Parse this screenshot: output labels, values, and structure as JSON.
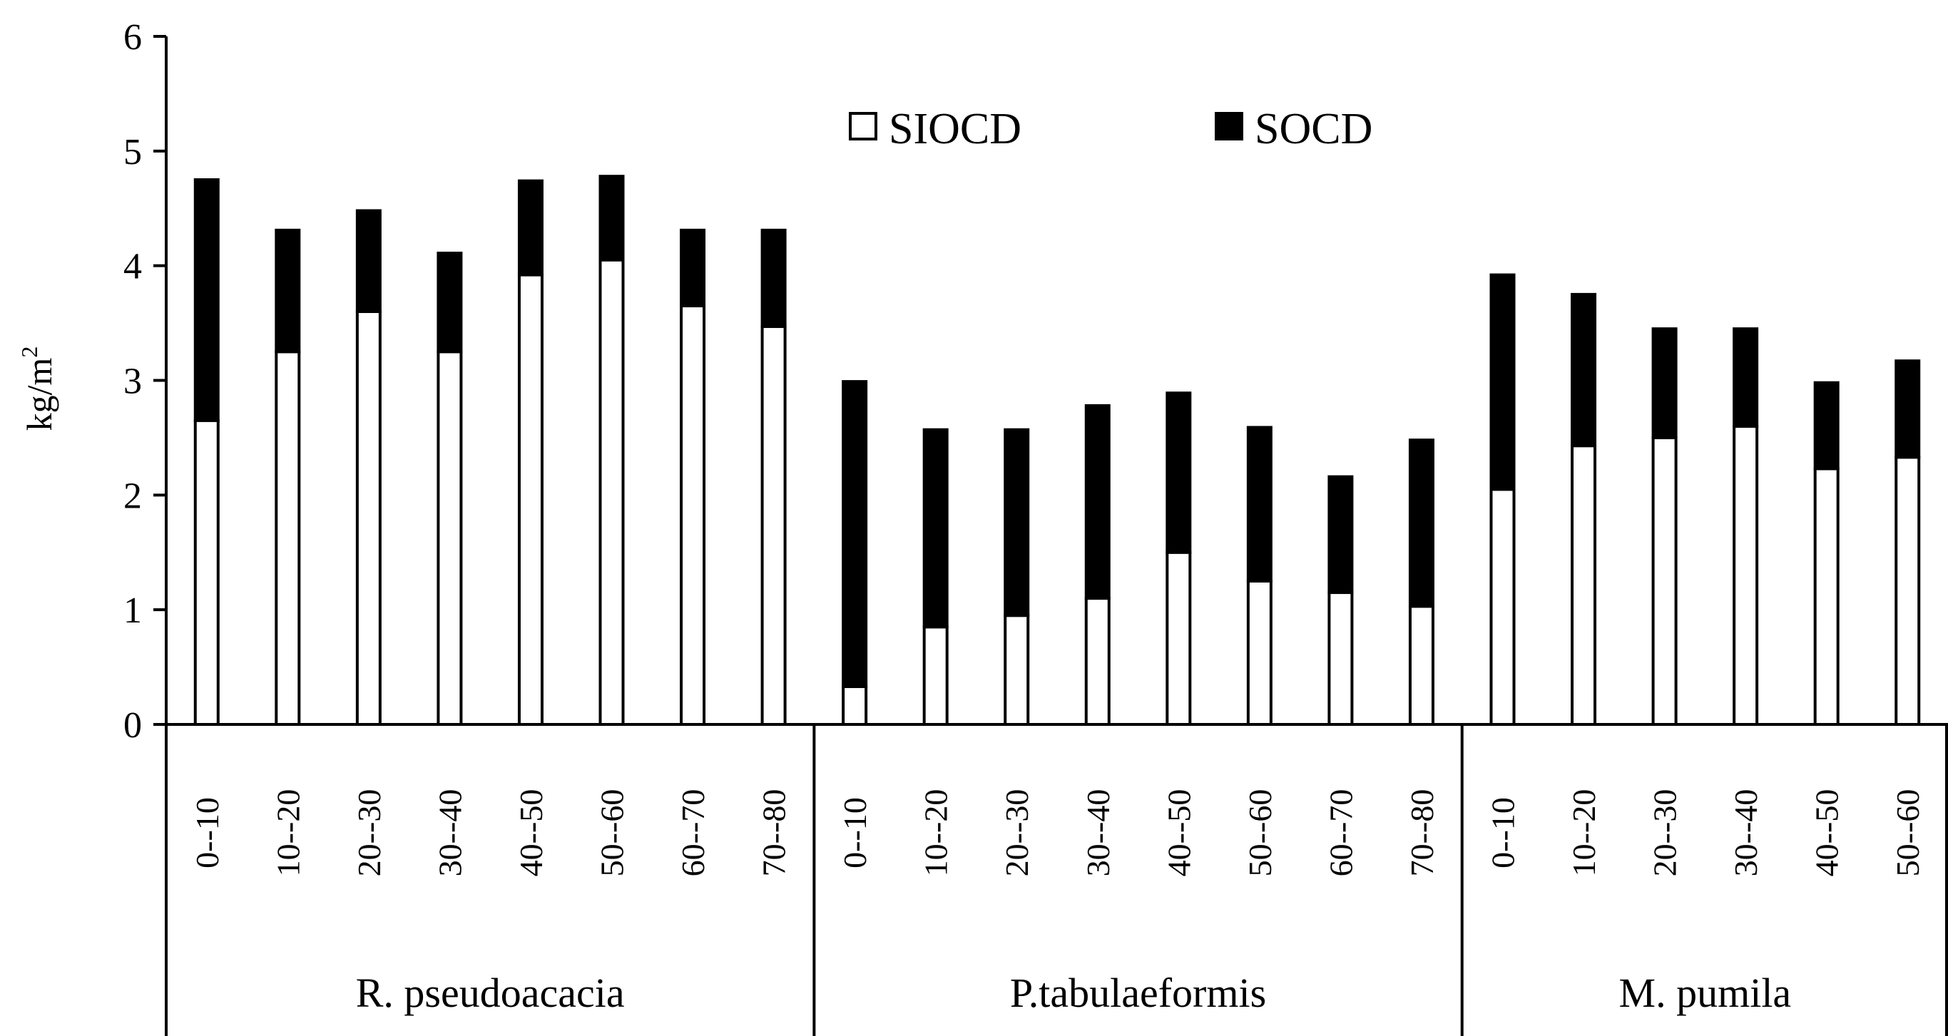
{
  "chart_data": {
    "type": "bar",
    "stacked": true,
    "title": "",
    "xlabel": "",
    "ylabel": "kg/m",
    "ylabel_superscript": "2",
    "ylim": [
      0,
      6
    ],
    "yticks": [
      "0",
      "1",
      "2",
      "3",
      "4",
      "5",
      "6"
    ],
    "groups": [
      {
        "name": "R. pseudoacacia",
        "categories": [
          "0--10",
          "10--20",
          "20--30",
          "30--40",
          "40--50",
          "50--60",
          "60--70",
          "70--80"
        ],
        "siocd": [
          2.65,
          3.25,
          3.6,
          3.25,
          3.92,
          4.05,
          3.65,
          3.47
        ],
        "socd": [
          2.1,
          1.06,
          0.88,
          0.86,
          0.82,
          0.73,
          0.66,
          0.84
        ]
      },
      {
        "name": "P.tabulaeformis",
        "categories": [
          "0--10",
          "10--20",
          "20--30",
          "30--40",
          "40--50",
          "50--60",
          "60--70",
          "70--80"
        ],
        "siocd": [
          0.33,
          0.85,
          0.95,
          1.1,
          1.5,
          1.25,
          1.15,
          1.03
        ],
        "socd": [
          2.66,
          1.72,
          1.62,
          1.68,
          1.39,
          1.34,
          1.01,
          1.45
        ]
      },
      {
        "name": "M. pumila",
        "categories": [
          "0--10",
          "10--20",
          "20--30",
          "30--40",
          "40--50",
          "50--60"
        ],
        "siocd": [
          2.05,
          2.43,
          2.5,
          2.6,
          2.23,
          2.33
        ],
        "socd": [
          1.87,
          1.32,
          0.95,
          0.85,
          0.75,
          0.84
        ]
      }
    ],
    "series": [
      {
        "name": "SIOCD",
        "color": "#ffffff",
        "stroke": "#000000"
      },
      {
        "name": "SOCD",
        "color": "#000000",
        "stroke": "#000000"
      }
    ],
    "legend_position": "top-center",
    "grid": false
  }
}
